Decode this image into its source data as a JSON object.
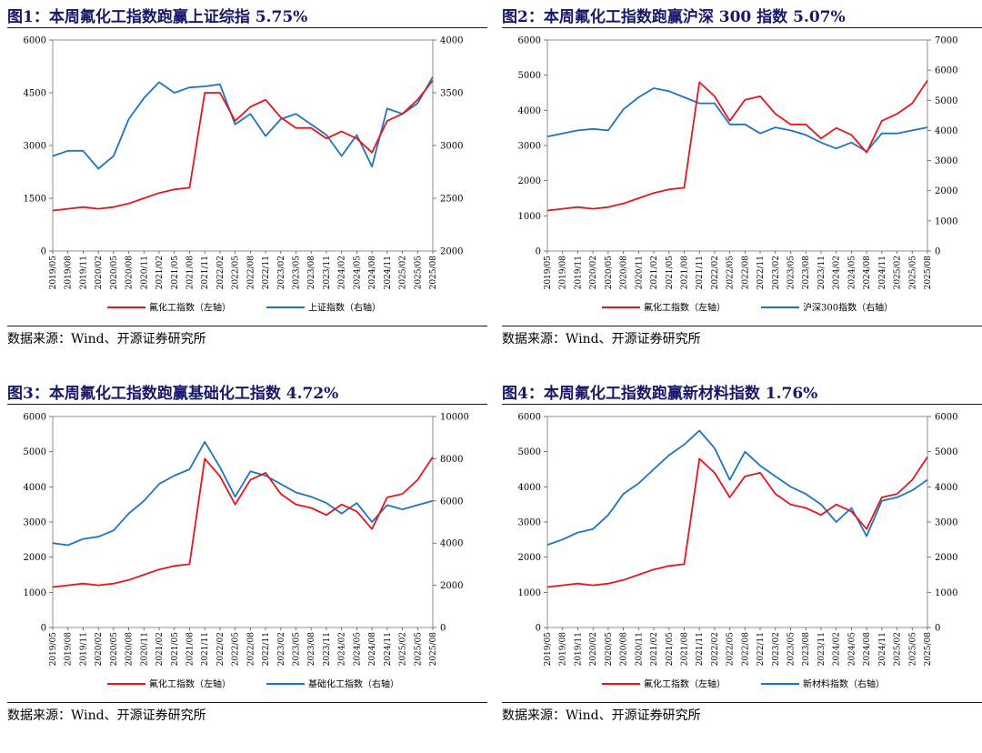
{
  "figures": [
    {
      "title": "图1：本周氟化工指数跑赢上证综指 5.75%",
      "source": "数据来源：Wind、开源证券研究所",
      "chart_data": {
        "type": "line",
        "title": "图1：本周氟化工指数跑赢上证综指 5.75%",
        "dual_axis": true,
        "left_axis": {
          "min": 0,
          "max": 6000,
          "ticks": [
            0,
            1500,
            3000,
            4500,
            6000
          ]
        },
        "right_axis": {
          "min": 2000,
          "max": 4000,
          "ticks": [
            2000,
            2500,
            3000,
            3500,
            4000
          ]
        },
        "x_ticks": [
          "2019/05",
          "2019/08",
          "2019/11",
          "2020/02",
          "2020/05",
          "2020/08",
          "2020/11",
          "2021/02",
          "2021/05",
          "2021/08",
          "2021/11",
          "2022/02",
          "2022/05",
          "2022/08",
          "2022/11",
          "2023/02",
          "2023/05",
          "2023/08",
          "2023/11",
          "2024/02",
          "2024/05",
          "2024/08",
          "2024/11",
          "2025/02",
          "2025/05",
          "2025/08"
        ],
        "legend_placement": "bottom",
        "series": [
          {
            "name": "氟化工指数（左轴）",
            "axis": "left",
            "color": "#e8141c",
            "values": [
              1150,
              1200,
              1250,
              1200,
              1250,
              1350,
              1500,
              1650,
              1750,
              1800,
              4500,
              4500,
              3700,
              4100,
              4300,
              3800,
              3500,
              3500,
              3200,
              3400,
              3200,
              2800,
              3700,
              3900,
              4300,
              4850
            ]
          },
          {
            "name": "上证指数（右轴）",
            "axis": "right",
            "color": "#1f73c0",
            "values": [
              2900,
              2950,
              2950,
              2780,
              2900,
              3250,
              3450,
              3600,
              3500,
              3550,
              3560,
              3580,
              3200,
              3300,
              3090,
              3250,
              3300,
              3200,
              3100,
              2900,
              3100,
              2800,
              3350,
              3300,
              3400,
              3650
            ]
          }
        ]
      }
    },
    {
      "title": "图2：本周氟化工指数跑赢沪深 300 指数 5.07%",
      "source": "数据来源：Wind、开源证券研究所",
      "chart_data": {
        "type": "line",
        "title": "图2：本周氟化工指数跑赢沪深 300 指数 5.07%",
        "dual_axis": true,
        "left_axis": {
          "min": 0,
          "max": 6000,
          "ticks": [
            0,
            1000,
            2000,
            3000,
            4000,
            5000,
            6000
          ]
        },
        "right_axis": {
          "min": 0,
          "max": 7000,
          "ticks": [
            0,
            1000,
            2000,
            3000,
            4000,
            5000,
            6000,
            7000
          ]
        },
        "x_ticks": [
          "2019/05",
          "2019/08",
          "2019/11",
          "2020/02",
          "2020/05",
          "2020/08",
          "2020/11",
          "2021/02",
          "2021/05",
          "2021/08",
          "2021/11",
          "2022/02",
          "2022/05",
          "2022/08",
          "2022/11",
          "2023/02",
          "2023/05",
          "2023/08",
          "2023/11",
          "2024/02",
          "2024/05",
          "2024/08",
          "2024/11",
          "2025/02",
          "2025/05",
          "2025/08"
        ],
        "legend_placement": "bottom",
        "series": [
          {
            "name": "氟化工指数（左轴）",
            "axis": "left",
            "color": "#e8141c",
            "values": [
              1150,
              1200,
              1250,
              1200,
              1250,
              1350,
              1500,
              1650,
              1750,
              1800,
              4800,
              4400,
              3700,
              4300,
              4400,
              3900,
              3600,
              3600,
              3200,
              3500,
              3300,
              2800,
              3700,
              3900,
              4200,
              4850
            ]
          },
          {
            "name": "沪深300指数（右轴）",
            "axis": "right",
            "color": "#1f73c0",
            "values": [
              3800,
              3900,
              4000,
              4050,
              4000,
              4700,
              5100,
              5400,
              5300,
              5100,
              4900,
              4900,
              4200,
              4200,
              3900,
              4100,
              4000,
              3850,
              3600,
              3400,
              3600,
              3300,
              3900,
              3900,
              4000,
              4100
            ]
          }
        ]
      }
    },
    {
      "title": "图3：本周氟化工指数跑赢基础化工指数 4.72%",
      "source": "数据来源：Wind、开源证券研究所",
      "chart_data": {
        "type": "line",
        "title": "图3：本周氟化工指数跑赢基础化工指数 4.72%",
        "dual_axis": true,
        "left_axis": {
          "min": 0,
          "max": 6000,
          "ticks": [
            0,
            1000,
            2000,
            3000,
            4000,
            5000,
            6000
          ]
        },
        "right_axis": {
          "min": 0,
          "max": 10000,
          "ticks": [
            0,
            2000,
            4000,
            6000,
            8000,
            10000
          ]
        },
        "x_ticks": [
          "2019/05",
          "2019/08",
          "2019/11",
          "2020/02",
          "2020/05",
          "2020/08",
          "2020/11",
          "2021/02",
          "2021/05",
          "2021/08",
          "2021/11",
          "2022/02",
          "2022/05",
          "2022/08",
          "2022/11",
          "2023/02",
          "2023/05",
          "2023/08",
          "2023/11",
          "2024/02",
          "2024/05",
          "2024/08",
          "2024/11",
          "2025/02",
          "2025/05",
          "2025/08"
        ],
        "legend_placement": "bottom",
        "series": [
          {
            "name": "氟化工指数（左轴）",
            "axis": "left",
            "color": "#e8141c",
            "values": [
              1150,
              1200,
              1250,
              1200,
              1250,
              1350,
              1500,
              1650,
              1750,
              1800,
              4800,
              4300,
              3500,
              4200,
              4400,
              3800,
              3500,
              3400,
              3200,
              3500,
              3300,
              2800,
              3700,
              3800,
              4200,
              4850
            ]
          },
          {
            "name": "基础化工指数（右轴）",
            "axis": "right",
            "color": "#1f73c0",
            "values": [
              4000,
              3900,
              4200,
              4300,
              4600,
              5400,
              6000,
              6800,
              7200,
              7500,
              8800,
              7600,
              6200,
              7400,
              7200,
              6800,
              6400,
              6200,
              5900,
              5400,
              5900,
              5000,
              5800,
              5600,
              5800,
              6000
            ]
          }
        ]
      }
    },
    {
      "title": "图4：本周氟化工指数跑赢新材料指数 1.76%",
      "source": "数据来源：Wind、开源证券研究所",
      "chart_data": {
        "type": "line",
        "title": "图4：本周氟化工指数跑赢新材料指数 1.76%",
        "dual_axis": true,
        "left_axis": {
          "min": 0,
          "max": 6000,
          "ticks": [
            0,
            1000,
            2000,
            3000,
            4000,
            5000,
            6000
          ]
        },
        "right_axis": {
          "min": 0,
          "max": 6000,
          "ticks": [
            0,
            1000,
            2000,
            3000,
            4000,
            5000,
            6000
          ]
        },
        "x_ticks": [
          "2019/05",
          "2019/08",
          "2019/11",
          "2020/02",
          "2020/05",
          "2020/08",
          "2020/11",
          "2021/02",
          "2021/05",
          "2021/08",
          "2021/11",
          "2022/02",
          "2022/05",
          "2022/08",
          "2022/11",
          "2023/02",
          "2023/05",
          "2023/08",
          "2023/11",
          "2024/02",
          "2024/05",
          "2024/08",
          "2024/11",
          "2025/02",
          "2025/05",
          "2025/08"
        ],
        "legend_placement": "bottom",
        "series": [
          {
            "name": "氟化工指数（左轴）",
            "axis": "left",
            "color": "#e8141c",
            "values": [
              1150,
              1200,
              1250,
              1200,
              1250,
              1350,
              1500,
              1650,
              1750,
              1800,
              4800,
              4400,
              3700,
              4300,
              4400,
              3800,
              3500,
              3400,
              3200,
              3500,
              3300,
              2800,
              3700,
              3800,
              4200,
              4850
            ]
          },
          {
            "name": "新材料指数（右轴）",
            "axis": "right",
            "color": "#1f73c0",
            "values": [
              2350,
              2500,
              2700,
              2800,
              3200,
              3800,
              4100,
              4500,
              4900,
              5200,
              5600,
              5100,
              4200,
              5000,
              4600,
              4300,
              4000,
              3800,
              3500,
              3000,
              3400,
              2600,
              3600,
              3700,
              3900,
              4200
            ]
          }
        ]
      }
    }
  ]
}
